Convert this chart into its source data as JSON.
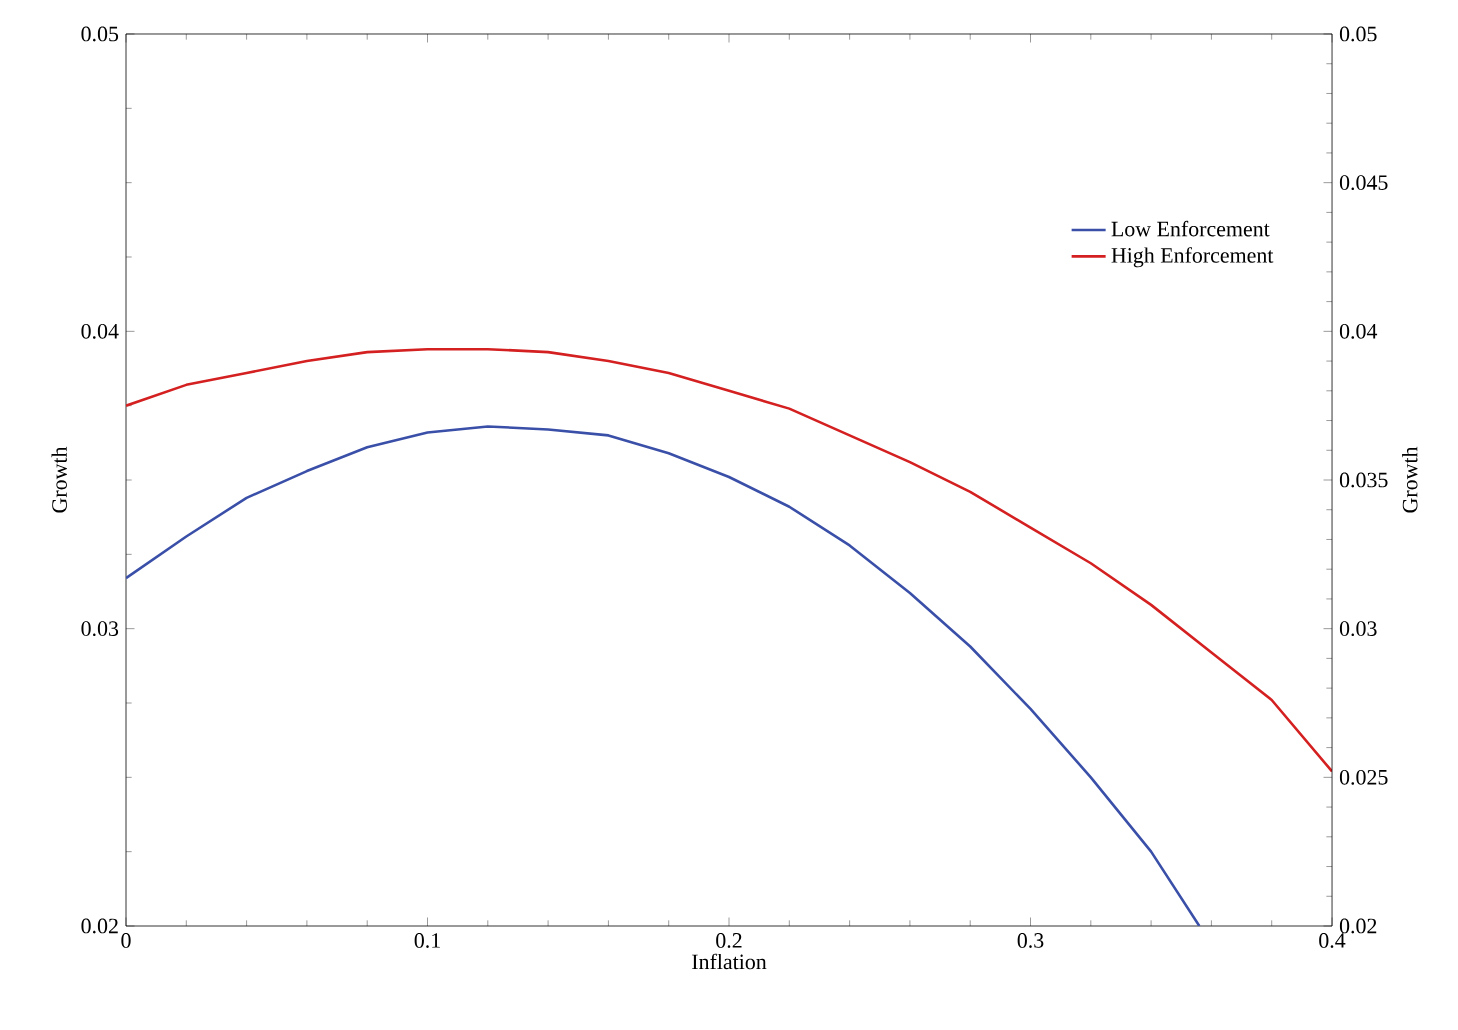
{
  "chart_data": {
    "type": "line",
    "xlabel": "Inflation",
    "ylabel": "Growth",
    "y2label": "Growth",
    "xlim": [
      0,
      0.4
    ],
    "xticks": [
      0,
      0.1,
      0.2,
      0.3,
      0.4
    ],
    "ylim": [
      0.02,
      0.05
    ],
    "yticks": [
      0.02,
      0.03,
      0.04,
      0.05
    ],
    "y2lim": [
      0.02,
      0.05
    ],
    "y2ticks": [
      0.02,
      0.025,
      0.03,
      0.035,
      0.04,
      0.045,
      0.05
    ],
    "legend": "top right",
    "grid": false,
    "marker": "none",
    "line_style": "solid",
    "series": [
      {
        "name": "Low Enforcement",
        "color": "#3a4fa8",
        "x": [
          0,
          0.02,
          0.04,
          0.06,
          0.08,
          0.1,
          0.12,
          0.14,
          0.16,
          0.18,
          0.2,
          0.22,
          0.24,
          0.26,
          0.28,
          0.3,
          0.32,
          0.34,
          0.356
        ],
        "values": [
          0.0317,
          0.0331,
          0.0344,
          0.0353,
          0.0361,
          0.0366,
          0.0368,
          0.0367,
          0.0365,
          0.0359,
          0.0351,
          0.0341,
          0.0328,
          0.0312,
          0.0294,
          0.0273,
          0.025,
          0.0225,
          0.02
        ]
      },
      {
        "name": "High Enforcement",
        "color": "#d42020",
        "x": [
          0,
          0.02,
          0.04,
          0.06,
          0.08,
          0.1,
          0.12,
          0.14,
          0.16,
          0.18,
          0.2,
          0.22,
          0.24,
          0.26,
          0.28,
          0.3,
          0.32,
          0.34,
          0.36,
          0.38,
          0.4
        ],
        "values": [
          0.0375,
          0.0382,
          0.0386,
          0.039,
          0.0393,
          0.0394,
          0.0394,
          0.0393,
          0.039,
          0.0386,
          0.038,
          0.0374,
          0.0365,
          0.0356,
          0.0346,
          0.0334,
          0.0322,
          0.0308,
          0.0292,
          0.0276,
          0.0252
        ]
      }
    ]
  }
}
